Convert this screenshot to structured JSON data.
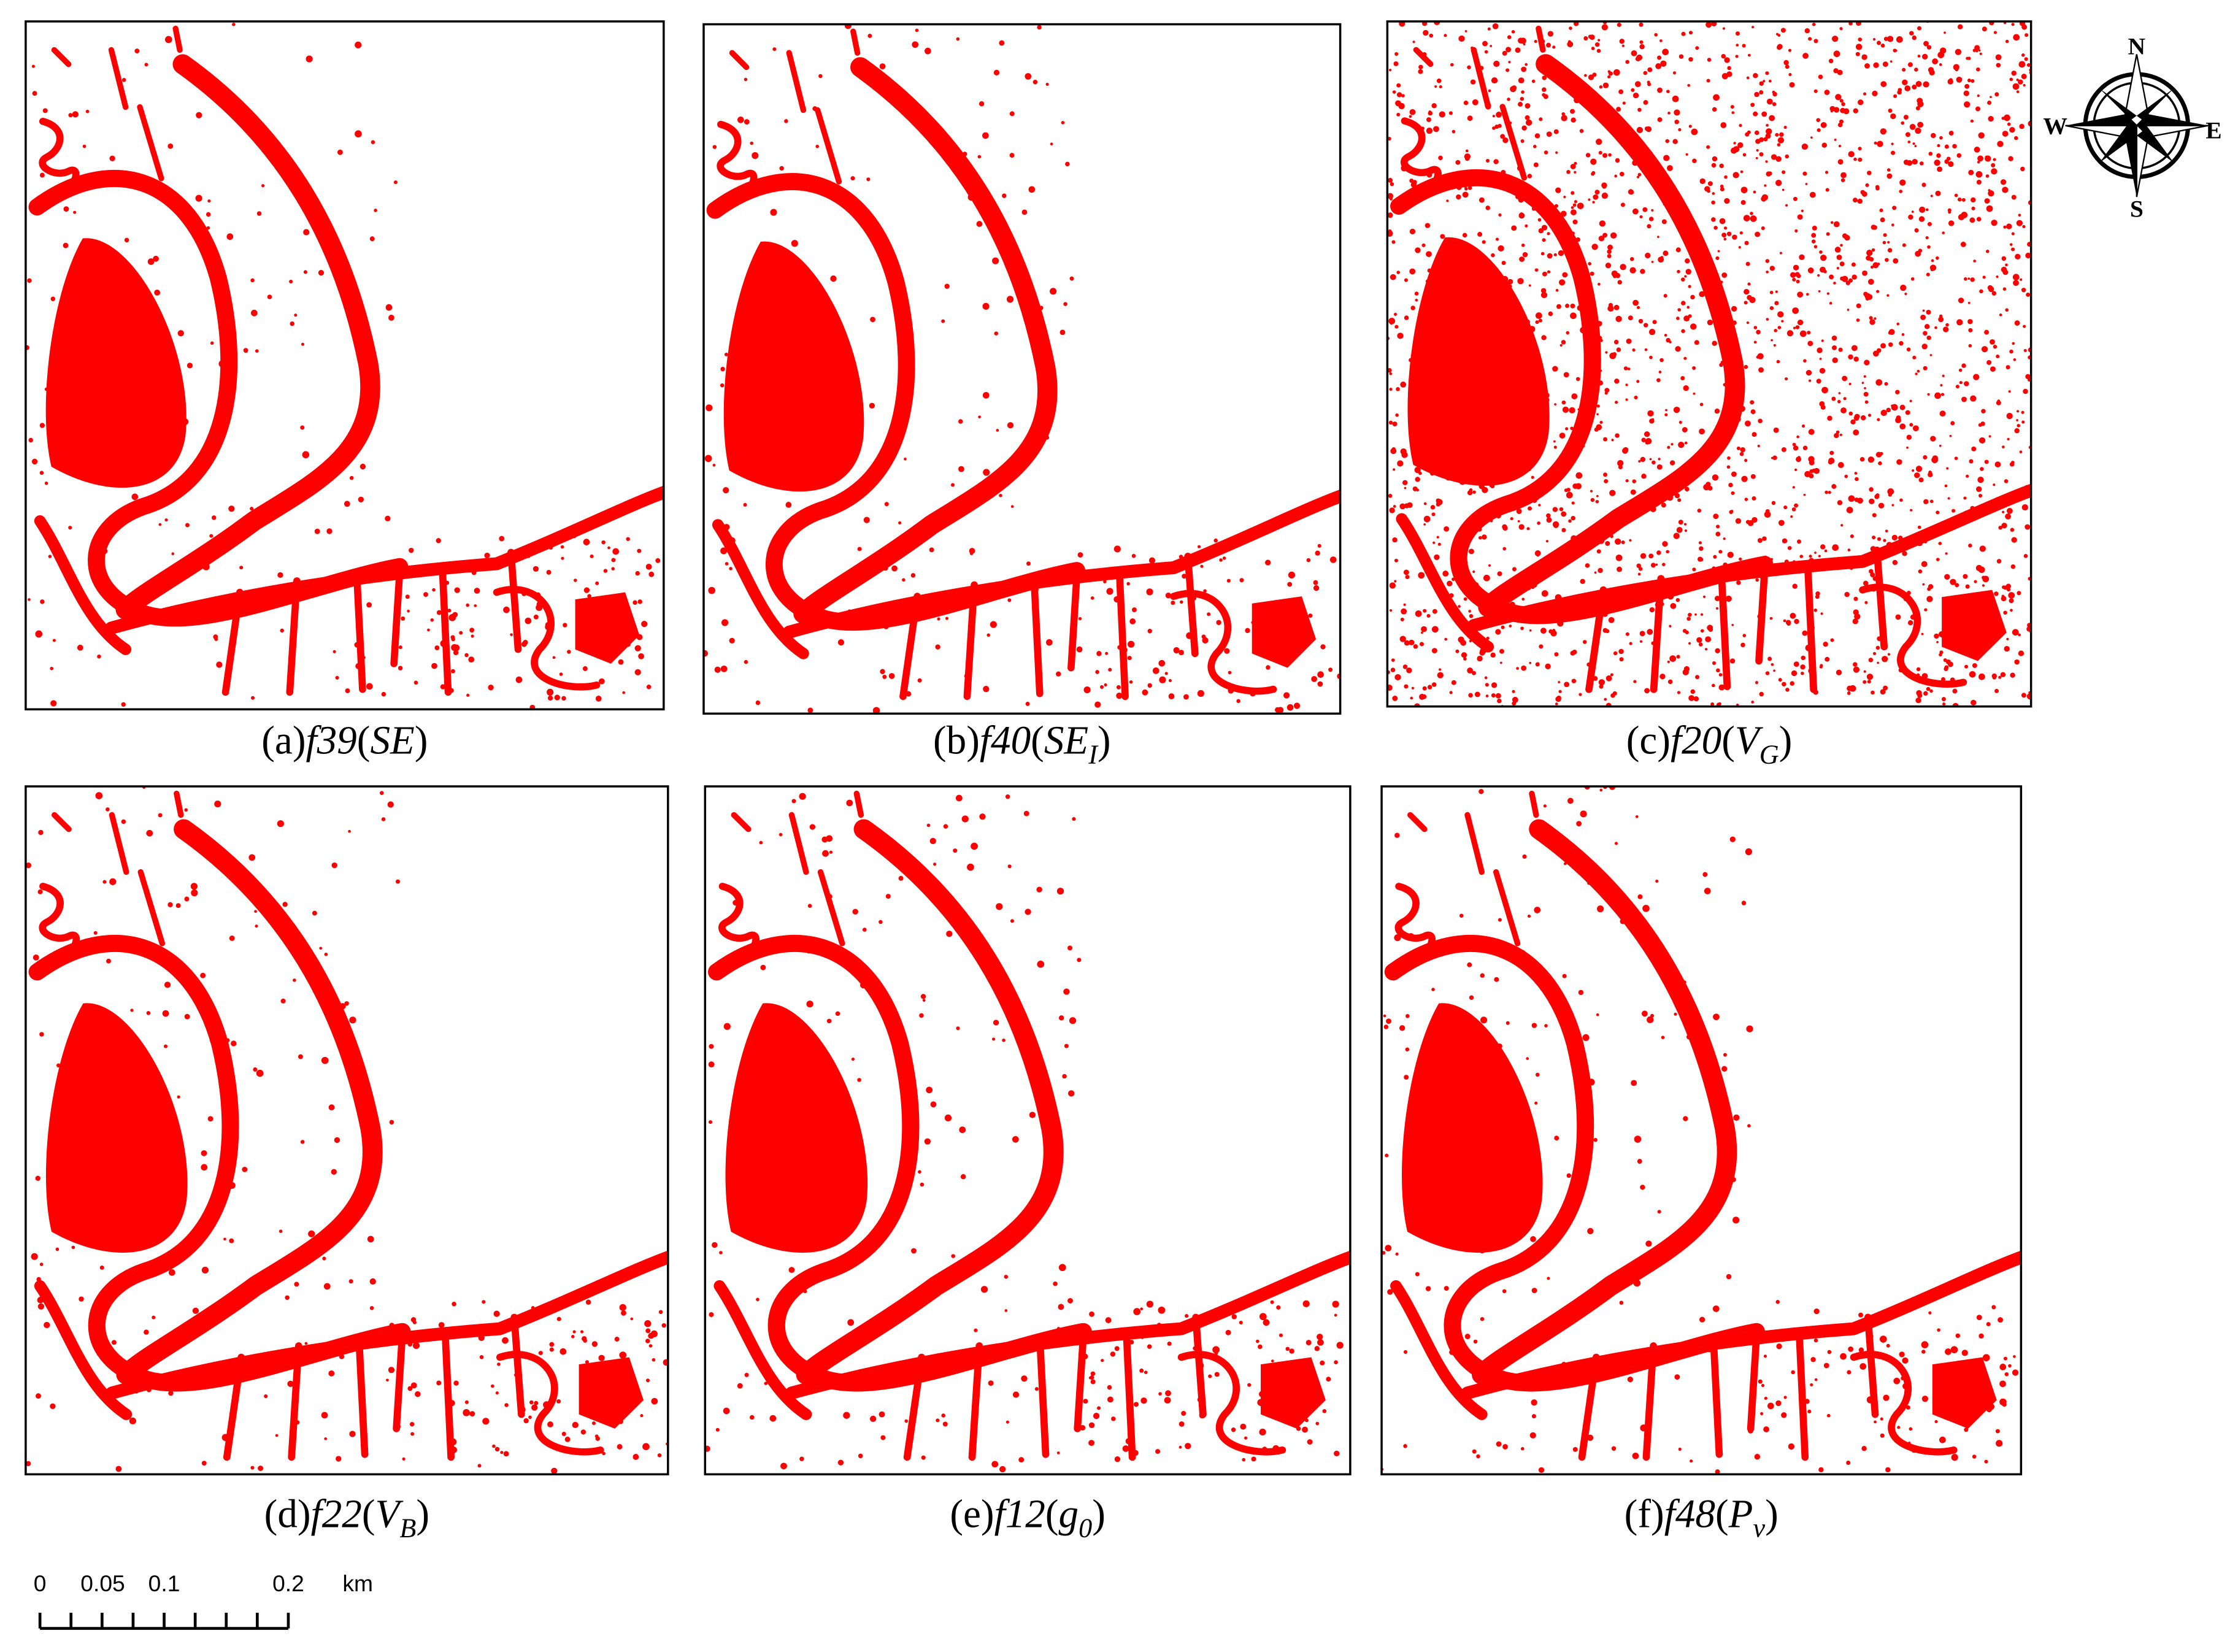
{
  "panels": [
    {
      "label": "(a)",
      "feature": "f39",
      "open": "(",
      "variable": "SE",
      "close": ")"
    },
    {
      "label": "(b)",
      "feature": "f40",
      "open": "(",
      "variable": "SE",
      "subscript": "I",
      "close": ")"
    },
    {
      "label": "(c)",
      "feature": "f20",
      "open": "(",
      "variable": "V",
      "subscript": "G",
      "close": ")"
    },
    {
      "label": "(d)",
      "feature": "f22",
      "open": "(",
      "variable": "V",
      "subscript": "B",
      "close": ")"
    },
    {
      "label": "(e)",
      "feature": "f12",
      "open": "(",
      "variable": "g",
      "subscript": "0",
      "close": ")"
    },
    {
      "label": "(f)",
      "feature": "f48",
      "open": "(",
      "variable": "P",
      "subscript": "v",
      "close": ")"
    }
  ],
  "compass": {
    "north": "N",
    "south": "S",
    "east": "E",
    "west": "W"
  },
  "scale_bar": {
    "labels": [
      "0",
      "0.05",
      "0.1",
      "0.2"
    ],
    "unit": "km"
  }
}
